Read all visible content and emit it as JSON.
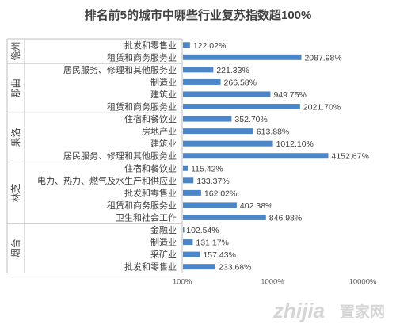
{
  "chart_data": {
    "type": "bar",
    "orientation": "horizontal",
    "title": "排名前5的城市中哪些行业复苏指数超100%",
    "xscale": "log",
    "xlim": [
      1,
      100
    ],
    "xticks": [
      "100%",
      "1000%",
      "10000%"
    ],
    "bar_color": "#4a86c8",
    "groups": [
      {
        "city": "儋州",
        "items": [
          {
            "category": "批发和零售业",
            "value": 1.2202,
            "label": "122.02%"
          },
          {
            "category": "租赁和商务服务业",
            "value": 20.8798,
            "label": "2087.98%"
          }
        ]
      },
      {
        "city": "那曲",
        "items": [
          {
            "category": "居民服务、修理和其他服务业",
            "value": 2.2133,
            "label": "221.33%"
          },
          {
            "category": "制造业",
            "value": 2.6658,
            "label": "266.58%"
          },
          {
            "category": "建筑业",
            "value": 9.4975,
            "label": "949.75%"
          },
          {
            "category": "租赁和商务服务业",
            "value": 20.217,
            "label": "2021.70%"
          }
        ]
      },
      {
        "city": "果洛",
        "items": [
          {
            "category": "住宿和餐饮业",
            "value": 3.527,
            "label": "352.70%"
          },
          {
            "category": "房地产业",
            "value": 6.1388,
            "label": "613.88%"
          },
          {
            "category": "建筑业",
            "value": 10.121,
            "label": "1012.10%"
          },
          {
            "category": "居民服务、修理和其他服务业",
            "value": 41.5267,
            "label": "4152.67%"
          }
        ]
      },
      {
        "city": "林芝",
        "items": [
          {
            "category": "住宿和餐饮业",
            "value": 1.1542,
            "label": "115.42%"
          },
          {
            "category": "电力、热力、燃气及水生产和供应业",
            "value": 1.3337,
            "label": "133.37%"
          },
          {
            "category": "批发和零售业",
            "value": 1.6202,
            "label": "162.02%"
          },
          {
            "category": "租赁和商务服务业",
            "value": 4.0238,
            "label": "402.38%"
          },
          {
            "category": "卫生和社会工作",
            "value": 8.4698,
            "label": "846.98%"
          }
        ]
      },
      {
        "city": "烟台",
        "items": [
          {
            "category": "金融业",
            "value": 1.0254,
            "label": "102.54%"
          },
          {
            "category": "制造业",
            "value": 1.3117,
            "label": "131.17%"
          },
          {
            "category": "采矿业",
            "value": 1.5743,
            "label": "157.43%"
          },
          {
            "category": "批发和零售业",
            "value": 2.3368,
            "label": "233.68%"
          }
        ]
      }
    ]
  },
  "watermark": {
    "text_a": "zhijia",
    "text_b": "置家网"
  }
}
